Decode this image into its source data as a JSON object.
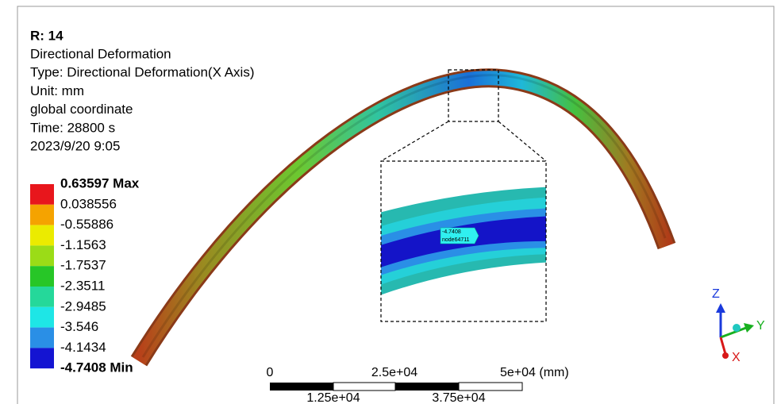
{
  "header": {
    "title": "R: 14",
    "lines": [
      "Directional Deformation",
      "Type: Directional Deformation(X Axis)",
      "Unit: mm",
      "global coordinate",
      "Time: 28800 s",
      "2023/9/20 9:05"
    ]
  },
  "legend": {
    "labels": [
      "0.63597 Max",
      "0.038556",
      "-0.55886",
      "-1.1563",
      "-1.7537",
      "-2.3511",
      "-2.9485",
      "-3.546",
      "-4.1434",
      "-4.7408 Min"
    ],
    "colors": [
      "#e8161c",
      "#f5a300",
      "#ebeb00",
      "#9bdc17",
      "#27c627",
      "#25d89a",
      "#1ee6e6",
      "#2a8fe6",
      "#1414d2"
    ]
  },
  "probe": {
    "value": "-4.7408",
    "node": "node64711"
  },
  "scale_bar": {
    "top": [
      "0",
      "2.5e+04",
      "5e+04 (mm)"
    ],
    "bottom": [
      "1.25e+04",
      "3.75e+04"
    ]
  },
  "triad": {
    "z": "Z",
    "y": "Y",
    "x": "X"
  }
}
